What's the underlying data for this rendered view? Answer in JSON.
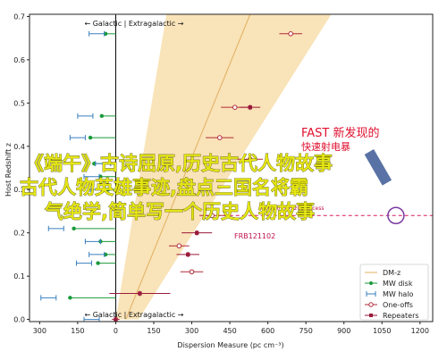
{
  "chart_data": {
    "type": "scatter",
    "xlabel": "Dispersion Measure (pc cm⁻³)",
    "ylabel": "Host Redshift z",
    "xlim": [
      -340,
      1250
    ],
    "ylim": [
      -0.005,
      0.705
    ],
    "x_ticks": [
      -300,
      -150,
      0,
      150,
      300,
      450,
      600,
      750,
      900,
      1050,
      1200
    ],
    "x_tick_labels": [
      "300",
      "150",
      "0",
      "150",
      "300",
      "450",
      "600",
      "750",
      "900",
      "1050",
      "1200"
    ],
    "y_ticks": [
      0.0,
      0.1,
      0.2,
      0.3,
      0.4,
      0.5,
      0.6,
      0.7
    ],
    "y_tick_labels": [
      "0.0",
      "0.1",
      "0.2",
      "0.3",
      "0.4",
      "0.5",
      "0.6",
      "0.7"
    ],
    "band_top_label": "← Galactic | Extragalactic →",
    "band_bottom_label": "← Galactic | Extragalactic →",
    "fast_label_line1": "FAST 新发现的",
    "fast_label_line2": "快速射电暴",
    "frb_small_label": "FRB 20190520B excess",
    "frb121102_label": "FRB121102",
    "legend": {
      "position": "lower-right",
      "items": [
        "DM-z",
        "MW disk",
        "MW halo",
        "One-offs",
        "Repeaters"
      ]
    },
    "colors": {
      "dmz_band": "#f9e3b8",
      "dmz_line": "#e0b060",
      "mw_disk": "#1a9a3a",
      "mw_halo": "#3a7fbf",
      "oneoffs": "#b22b3a",
      "repeaters": "#9a1a3a",
      "fast_highlight": "#7a3aa0",
      "frb121102_line": "#d81b60"
    },
    "series": [
      {
        "name": "MW disk",
        "points": [
          {
            "x": -40,
            "y": 0.66
          },
          {
            "x": -55,
            "y": 0.47
          },
          {
            "x": -100,
            "y": 0.42
          },
          {
            "x": -85,
            "y": 0.36
          },
          {
            "x": -60,
            "y": 0.33
          },
          {
            "x": -30,
            "y": 0.3
          },
          {
            "x": -165,
            "y": 0.21
          },
          {
            "x": -60,
            "y": 0.18
          },
          {
            "x": -40,
            "y": 0.15
          },
          {
            "x": -70,
            "y": 0.13
          },
          {
            "x": -180,
            "y": 0.05
          }
        ]
      },
      {
        "name": "MW halo",
        "points": [
          {
            "x": -75,
            "xerr": 30,
            "y": 0.66
          },
          {
            "x": -120,
            "xerr": 30,
            "y": 0.47
          },
          {
            "x": -150,
            "xerr": 30,
            "y": 0.42
          },
          {
            "x": -50,
            "xerr": 30,
            "y": 0.36
          },
          {
            "x": -95,
            "xerr": 30,
            "y": 0.33
          },
          {
            "x": -70,
            "xerr": 30,
            "y": 0.3
          },
          {
            "x": -235,
            "xerr": 30,
            "y": 0.21
          },
          {
            "x": -90,
            "xerr": 30,
            "y": 0.18
          },
          {
            "x": -75,
            "xerr": 30,
            "y": 0.15
          },
          {
            "x": -125,
            "xerr": 30,
            "y": 0.13
          },
          {
            "x": -265,
            "xerr": 30,
            "y": 0.05
          },
          {
            "x": -95,
            "xerr": 30,
            "y": 0.0
          }
        ]
      },
      {
        "name": "One-offs",
        "points": [
          {
            "x": 690,
            "xerr": 45,
            "y": 0.66
          },
          {
            "x": 470,
            "xerr": 55,
            "y": 0.49
          },
          {
            "x": 410,
            "xerr": 55,
            "y": 0.42
          },
          {
            "x": 530,
            "xerr": 50,
            "y": 0.37
          },
          {
            "x": 380,
            "xerr": 50,
            "y": 0.24
          },
          {
            "x": 250,
            "xerr": 40,
            "y": 0.17
          },
          {
            "x": 300,
            "xerr": 45,
            "y": 0.11
          }
        ]
      },
      {
        "name": "Repeaters",
        "points": [
          {
            "x": 530,
            "xerr": 40,
            "y": 0.49
          },
          {
            "x": 320,
            "xerr": 60,
            "y": 0.2
          },
          {
            "x": 285,
            "xerr": 45,
            "y": 0.15
          },
          {
            "x": 95,
            "xerr": 120,
            "y": 0.06
          },
          {
            "x": 0,
            "xerr": 15,
            "y": 0.0
          }
        ]
      }
    ],
    "fast_highlight": {
      "x": 1105,
      "y": 0.24
    },
    "frb121102_line": {
      "x_start": 350,
      "x_end": 1250,
      "y": 0.24
    }
  },
  "overlay": {
    "line1": "《端午》古诗屈原,历史古代人物故事",
    "line2": "古代人物英雄事迹,盘点三国名将霸",
    "line3": "气绝学,简单写一个历史人物故事"
  }
}
